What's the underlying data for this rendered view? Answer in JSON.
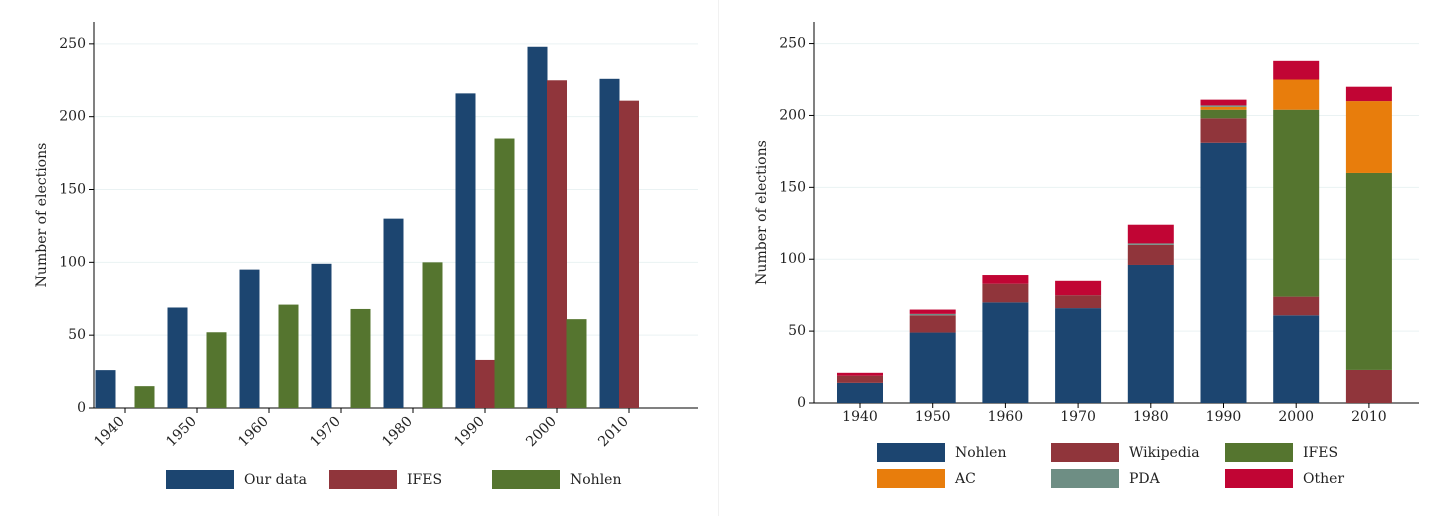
{
  "chart_data": [
    {
      "type": "bar",
      "title": "",
      "xlabel": "",
      "ylabel": "Number of elections",
      "ylim": [
        0,
        265
      ],
      "yticks": [
        0,
        50,
        100,
        150,
        200,
        250
      ],
      "grid": true,
      "legend_position": "bottom",
      "categories": [
        "1940",
        "1950",
        "1960",
        "1970",
        "1980",
        "1990",
        "2000",
        "2010"
      ],
      "series": [
        {
          "name": "Our data",
          "color": "#1c4570",
          "values": [
            26,
            69,
            95,
            99,
            130,
            216,
            248,
            226
          ]
        },
        {
          "name": "IFES",
          "color": "#90353b",
          "values": [
            0,
            0,
            0,
            0,
            0,
            33,
            225,
            211
          ]
        },
        {
          "name": "Nohlen",
          "color": "#55752f",
          "values": [
            15,
            52,
            71,
            68,
            100,
            185,
            61,
            0
          ]
        }
      ]
    },
    {
      "type": "stacked-bar",
      "title": "",
      "xlabel": "",
      "ylabel": "Number of elections",
      "ylim": [
        0,
        265
      ],
      "yticks": [
        0,
        50,
        100,
        150,
        200,
        250
      ],
      "grid": true,
      "legend_position": "bottom",
      "categories": [
        "1940",
        "1950",
        "1960",
        "1970",
        "1980",
        "1990",
        "2000",
        "2010"
      ],
      "series": [
        {
          "name": "Nohlen",
          "color": "#1c4570",
          "values": [
            14,
            49,
            70,
            66,
            96,
            181,
            61,
            0
          ]
        },
        {
          "name": "Wikipedia",
          "color": "#90353b",
          "values": [
            5,
            12,
            13,
            9,
            14,
            17,
            13,
            23
          ]
        },
        {
          "name": "IFES",
          "color": "#55752f",
          "values": [
            0,
            0,
            0,
            0,
            0,
            6,
            130,
            137
          ]
        },
        {
          "name": "AC",
          "color": "#e87d0c",
          "values": [
            0,
            0,
            0,
            0,
            0,
            2,
            21,
            50
          ]
        },
        {
          "name": "PDA",
          "color": "#6e8e84",
          "values": [
            0,
            1,
            0,
            0,
            1,
            1,
            0,
            0
          ]
        },
        {
          "name": "Other",
          "color": "#c10534",
          "values": [
            2,
            3,
            6,
            10,
            13,
            4,
            13,
            10
          ]
        }
      ]
    }
  ]
}
